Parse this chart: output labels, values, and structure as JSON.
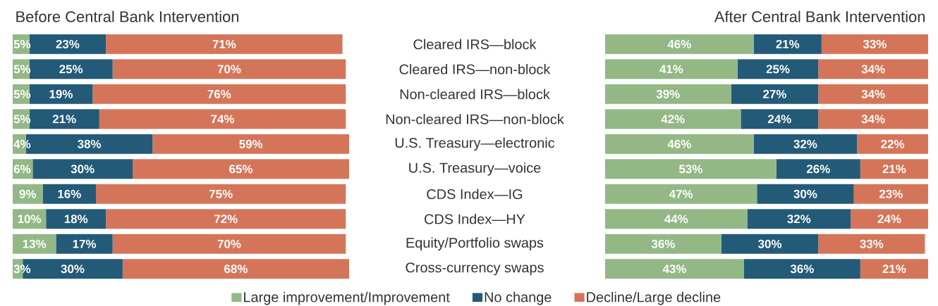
{
  "chart_data": [
    {
      "type": "bar",
      "orientation": "horizontal",
      "stacked": true,
      "title": "Before Central Bank Intervention",
      "categories": [
        "Cleared IRS—block",
        "Cleared IRS—non-block",
        "Non-cleared IRS—block",
        "Non-cleared IRS—non-block",
        "U.S. Treasury—electronic",
        "U.S. Treasury—voice",
        "CDS Index—IG",
        "CDS Index—HY",
        "Equity/Portfolio swaps",
        "Cross-currency swaps"
      ],
      "xlim": [
        0,
        101
      ],
      "tick_labels": "y",
      "legend": "bottom",
      "series": [
        {
          "name": "Large improvement/Improvement",
          "color": "#93b886",
          "values": [
            5,
            5,
            5,
            5,
            4,
            6,
            9,
            10,
            13,
            3
          ],
          "value_labels": [
            "5%",
            "5%",
            "5%",
            "5%",
            "4%",
            "6%",
            "9%",
            "10%",
            "13%",
            "3%"
          ]
        },
        {
          "name": "No change",
          "color": "#235a78",
          "values": [
            23,
            25,
            19,
            21,
            38,
            30,
            16,
            18,
            17,
            30
          ],
          "value_labels": [
            "23%",
            "25%",
            "19%",
            "21%",
            "38%",
            "30%",
            "16%",
            "18%",
            "17%",
            "30%"
          ]
        },
        {
          "name": "Decline/Large decline",
          "color": "#d4755a",
          "values": [
            71,
            70,
            76,
            74,
            59,
            65,
            75,
            72,
            70,
            68
          ],
          "value_labels": [
            "71%",
            "70%",
            "76%",
            "74%",
            "59%",
            "65%",
            "75%",
            "72%",
            "70%",
            "68%"
          ]
        }
      ]
    },
    {
      "type": "bar",
      "orientation": "horizontal",
      "stacked": true,
      "title": "After Central Bank Intervention",
      "xlim": [
        0,
        100
      ],
      "series": [
        {
          "color": "#93b886",
          "values": [
            46,
            41,
            39,
            42,
            46,
            53,
            47,
            44,
            36,
            43
          ],
          "value_labels": [
            "46%",
            "41%",
            "39%",
            "42%",
            "46%",
            "53%",
            "47%",
            "44%",
            "36%",
            "43%"
          ]
        },
        {
          "color": "#235a78",
          "values": [
            21,
            25,
            27,
            24,
            32,
            26,
            30,
            32,
            30,
            36
          ],
          "value_labels": [
            "21%",
            "25%",
            "27%",
            "24%",
            "32%",
            "26%",
            "30%",
            "32%",
            "30%",
            "36%"
          ]
        },
        {
          "color": "#d4755a",
          "values": [
            33,
            34,
            34,
            34,
            22,
            21,
            23,
            24,
            33,
            21
          ],
          "value_labels": [
            "33%",
            "34%",
            "34%",
            "34%",
            "22%",
            "21%",
            "23%",
            "24%",
            "33%",
            "21%"
          ]
        }
      ]
    }
  ]
}
